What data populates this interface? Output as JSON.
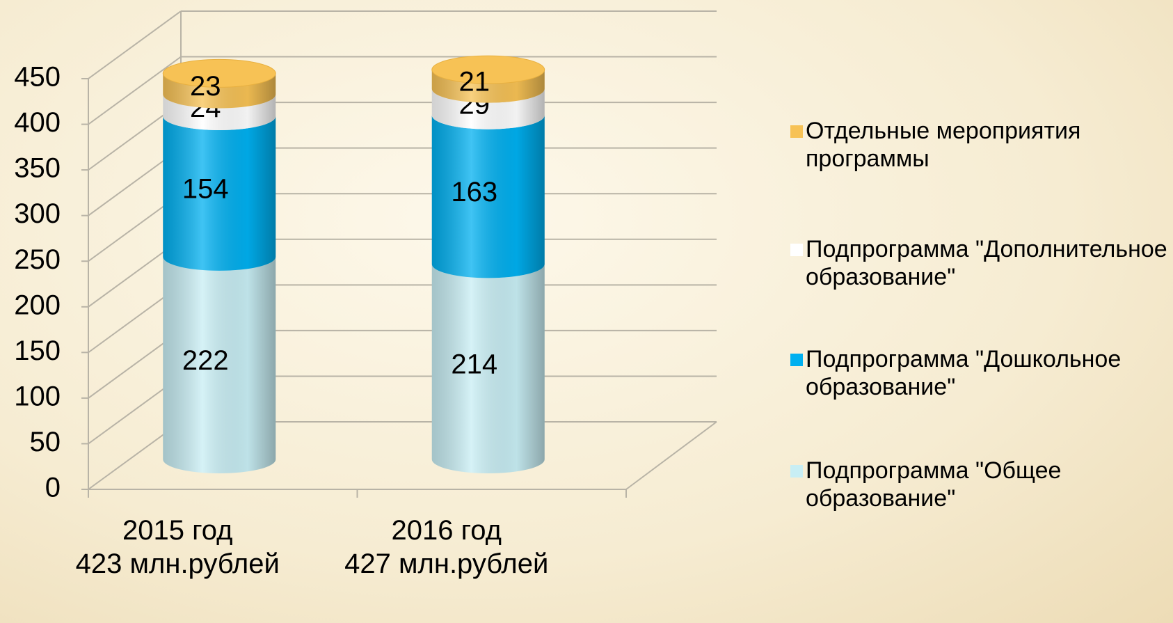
{
  "chart_data": {
    "type": "stacked_bar_3d",
    "categories": [
      "2015 год\n423 млн.рублей",
      "2016 год\n427 млн.рублей"
    ],
    "series": [
      {
        "name": "Подпрограмма \"Общее образование\"",
        "color": "#c8eef4",
        "values": [
          222,
          214
        ]
      },
      {
        "name": "Подпрограмма \"Дошкольное образование\"",
        "color": "#00b0f0",
        "values": [
          154,
          163
        ]
      },
      {
        "name": "Подпрограмма \"Дополнительное образование\"",
        "color": "#ffffff",
        "values": [
          24,
          29
        ]
      },
      {
        "name": "Отдельные мероприятия программы",
        "color": "#f7c255",
        "values": [
          23,
          21
        ]
      }
    ],
    "ylim": [
      0,
      450
    ],
    "yticks": [
      0,
      50,
      100,
      150,
      200,
      250,
      300,
      350,
      400,
      450
    ],
    "grid": true,
    "legend": "right"
  }
}
